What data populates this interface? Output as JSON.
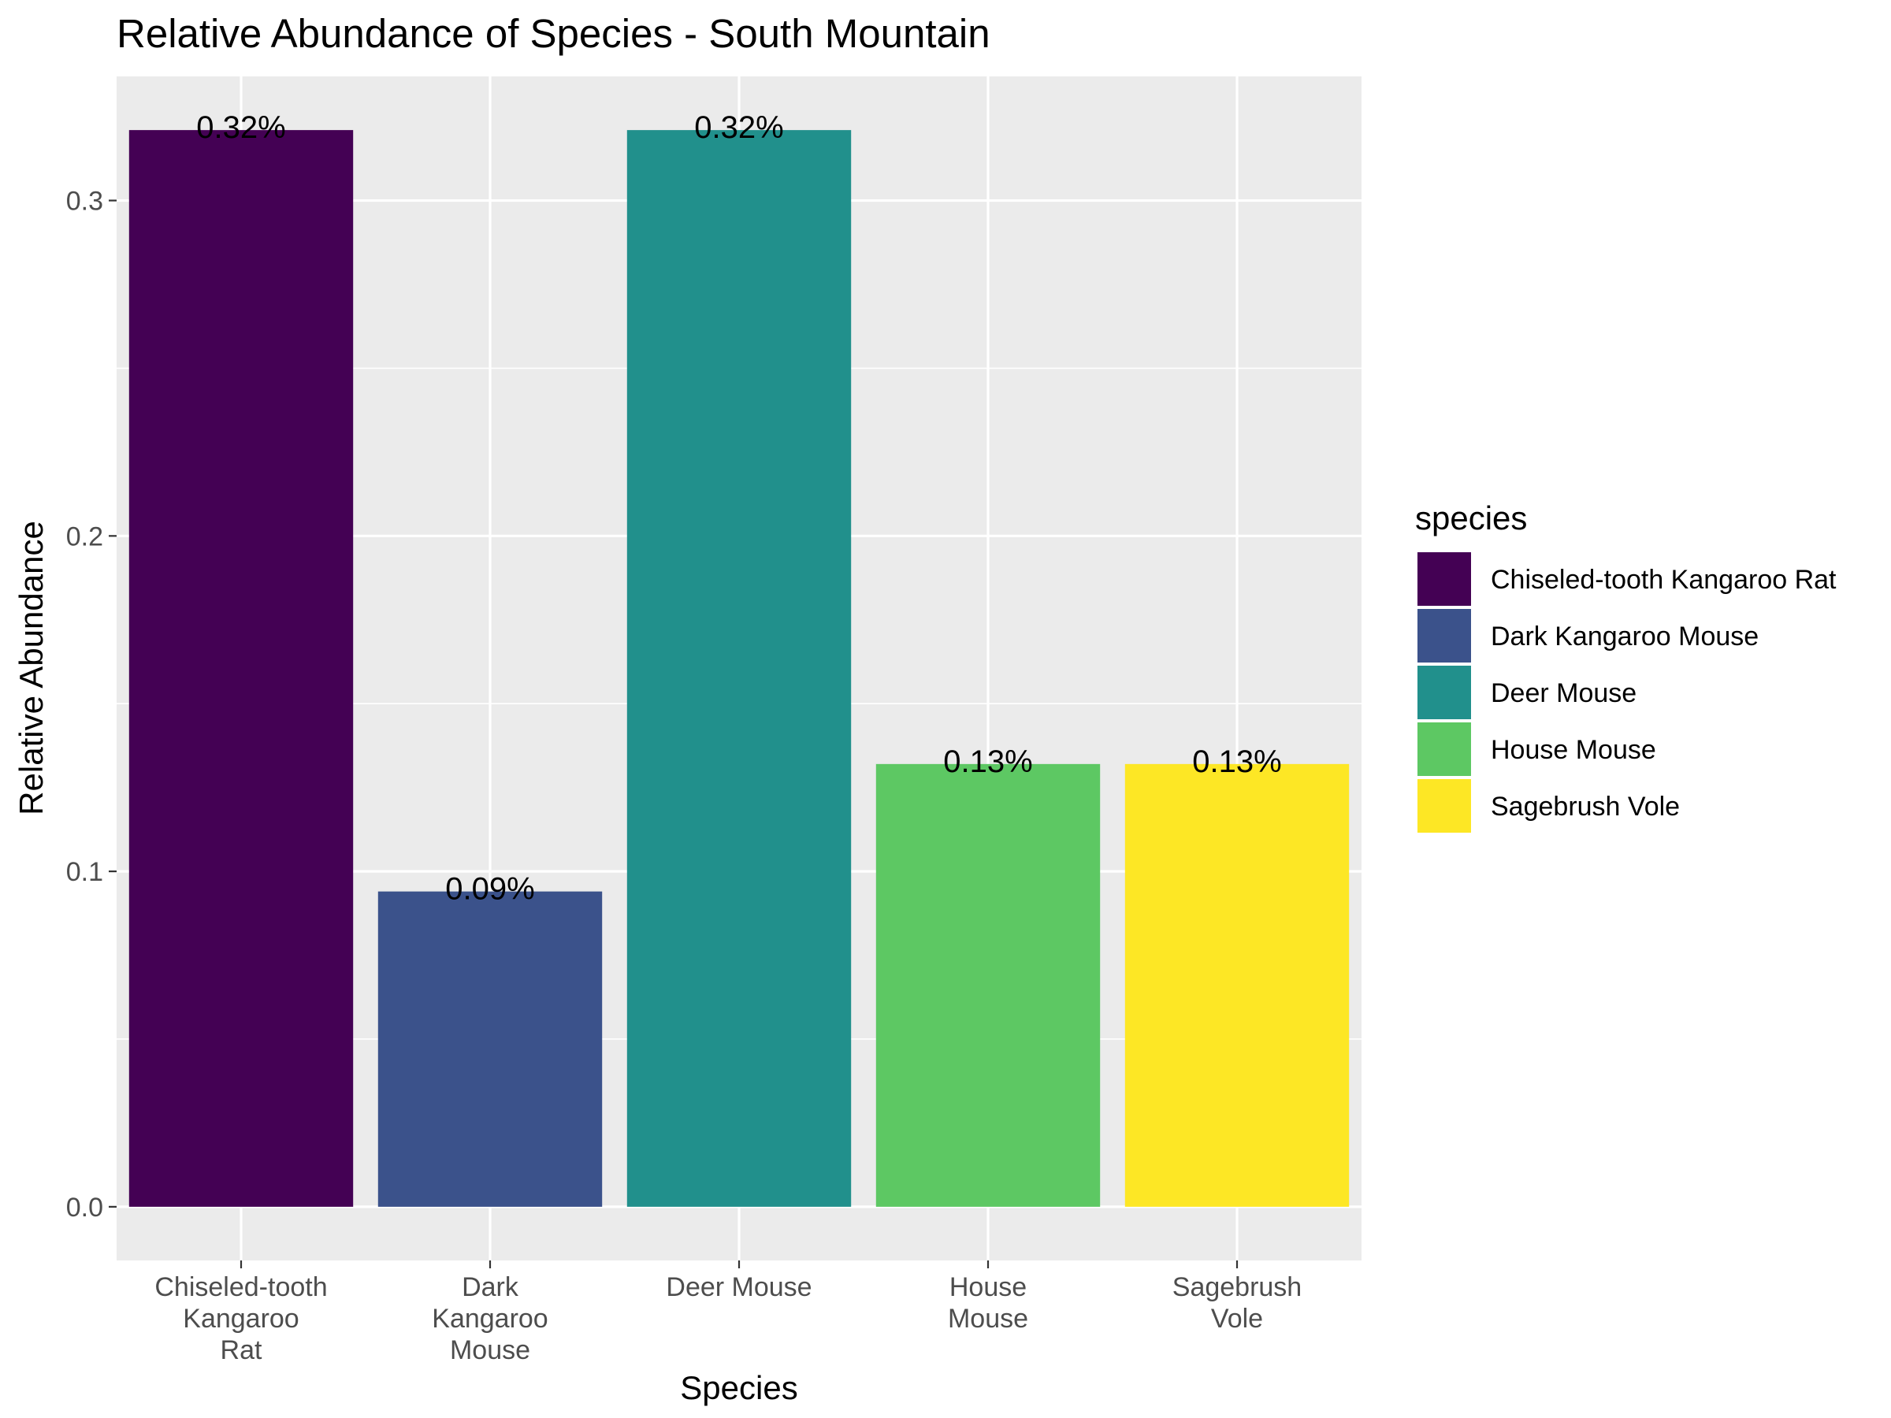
{
  "chart_data": {
    "type": "bar",
    "title": "Relative Abundance of Species - South Mountain",
    "xlabel": "Species",
    "ylabel": "Relative Abundance",
    "categories": [
      "Chiseled-tooth Kangaroo Rat",
      "Dark Kangaroo Mouse",
      "Deer Mouse",
      "House Mouse",
      "Sagebrush Vole"
    ],
    "category_tick_lines": [
      [
        "Chiseled-tooth",
        "Kangaroo",
        "Rat"
      ],
      [
        "Dark",
        "Kangaroo",
        "Mouse"
      ],
      [
        "Deer Mouse"
      ],
      [
        "House",
        "Mouse"
      ],
      [
        "Sagebrush",
        "Vole"
      ]
    ],
    "values": [
      0.321,
      0.094,
      0.321,
      0.132,
      0.132
    ],
    "data_labels": [
      "0.32%",
      "0.09%",
      "0.32%",
      "0.13%",
      "0.13%"
    ],
    "colors": [
      "#440154",
      "#3B528B",
      "#21908C",
      "#5DC863",
      "#FDE725"
    ],
    "ylim": [
      -0.016,
      0.337
    ],
    "y_ticks": [
      0.0,
      0.1,
      0.2,
      0.3
    ],
    "y_tick_labels": [
      "0.0",
      "0.1",
      "0.2",
      "0.3"
    ],
    "grid": true,
    "legend": {
      "title": "species",
      "placement": "right",
      "entries": [
        "Chiseled-tooth Kangaroo Rat",
        "Dark Kangaroo Mouse",
        "Deer Mouse",
        "House Mouse",
        "Sagebrush Vole"
      ]
    }
  }
}
